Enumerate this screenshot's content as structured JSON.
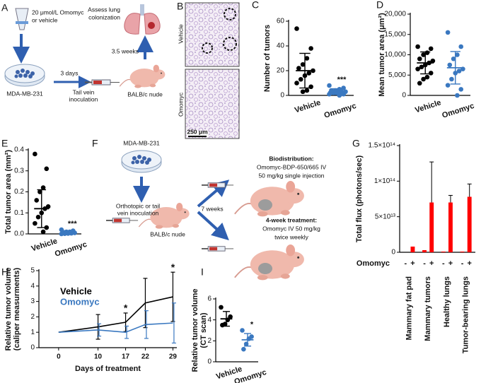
{
  "panel_labels": [
    "A",
    "B",
    "C",
    "D",
    "E",
    "F",
    "G",
    "H",
    "I"
  ],
  "diagram_a": {
    "treatment": [
      "20 μmol/L Omomyc",
      "or vehicle"
    ],
    "readout": [
      "Assess lung",
      "colonization"
    ],
    "wait": "3.5 weeks",
    "pre": "3 days",
    "cells": "MDA-MB-231",
    "injection": [
      "Tail vein",
      "inoculation"
    ],
    "mouse": "BALB/c nude"
  },
  "micrograph_b": {
    "rows": [
      "Vehicle",
      "Omomyc"
    ],
    "scale_bar": "250 μm"
  },
  "diagram_f": {
    "cells": "MDA-MB-231",
    "injection": [
      "Orthotopic or tail",
      "vein inoculation"
    ],
    "mouse": "BALB/c nude",
    "wait": "7 weeks",
    "biodistribution": {
      "title": "Biodistribution:",
      "lines": [
        "Omomyc-BDP-650/665 IV",
        "50 mg/kg single injection"
      ]
    },
    "treatment": {
      "title": "4-week treatment:",
      "lines": [
        "Omomyc IV 50 mg/kg",
        "twice weekly"
      ]
    }
  },
  "chart_data": [
    {
      "type": "dot",
      "y_label": "Number of tumors",
      "ylim": [
        0,
        60
      ],
      "yticks": [
        0,
        20,
        40,
        60
      ],
      "series": [
        {
          "name": "Vehicle",
          "color": "#000000",
          "values": [
            54,
            38,
            30,
            25,
            22,
            20,
            18,
            16,
            13,
            10,
            7,
            4,
            3
          ],
          "mean": 20,
          "sd": 14
        },
        {
          "name": "Omomyc",
          "color": "#3a78c0",
          "values": [
            8,
            6,
            5,
            4,
            4,
            3,
            3,
            2,
            2,
            1,
            1,
            0
          ],
          "mean": 3,
          "sd": 2.4
        }
      ],
      "annotations": [
        {
          "series": 1,
          "text": "***"
        }
      ]
    },
    {
      "type": "dot",
      "y_label": "Mean tumor area (μm²)",
      "ylim": [
        0,
        20000
      ],
      "yticks": [
        0,
        {
          "value": 5000,
          "label": "5,000"
        },
        {
          "value": 10000,
          "label": "10,000"
        },
        {
          "value": 15000,
          "label": "15,000"
        },
        {
          "value": 20000,
          "label": "20,000"
        }
      ],
      "series": [
        {
          "name": "Vehicle",
          "color": "#000000",
          "values": [
            12000,
            11500,
            10500,
            10000,
            9000,
            8500,
            8000,
            7500,
            7000,
            6500,
            5500,
            4500,
            4000,
            3000
          ],
          "mean": 8000,
          "sd": 2700
        },
        {
          "name": "Omomyc",
          "color": "#3a78c0",
          "values": [
            15500,
            12000,
            10000,
            9000,
            7500,
            6500,
            6000,
            5500,
            4000,
            2500,
            1500,
            0
          ],
          "mean": 6800,
          "sd": 4000
        }
      ],
      "annotations": []
    },
    {
      "type": "dot",
      "y_label": "Total tumor area (mm²)",
      "ylim": [
        0,
        0.4
      ],
      "yticks": [
        {
          "value": 0,
          "label": "0.0"
        },
        0.1,
        0.2,
        0.3,
        0.4
      ],
      "series": [
        {
          "name": "Vehicle",
          "color": "#000000",
          "values": [
            0.38,
            0.31,
            0.22,
            0.2,
            0.16,
            0.13,
            0.12,
            0.1,
            0.08,
            0.05,
            0.03,
            0.01
          ],
          "mean": 0.12,
          "sd": 0.09
        },
        {
          "name": "Omomyc",
          "color": "#3a78c0",
          "values": [
            0.02,
            0.015,
            0.01,
            0.01,
            0.008,
            0.005,
            0.003,
            0.002,
            0.001,
            0
          ],
          "mean": 0.01,
          "sd": 0.006
        }
      ],
      "annotations": [
        {
          "series": 1,
          "text": "***"
        }
      ]
    },
    {
      "type": "bar",
      "y_label": "Total flux (photons/sec)",
      "x_label": "Omomyc",
      "categories": [
        "Mammary fat pad",
        "Mammary tumors",
        "Healthy lungs",
        "Tumor-bearing lungs"
      ],
      "ylim": [
        0,
        150000000000000.0
      ],
      "yticks": [
        0,
        {
          "value": 50000000000000.0,
          "label": "5×10¹³"
        },
        {
          "value": 100000000000000.0,
          "label": "1×10¹⁴"
        },
        {
          "value": 150000000000000.0,
          "label": "1.5×10¹⁴"
        }
      ],
      "series": [
        {
          "name": "-",
          "color": "#ff0000",
          "values": [
            0,
            3000000000000.0,
            1000000000000.0,
            1000000000000.0
          ],
          "errors": [
            0,
            0,
            0,
            0
          ]
        },
        {
          "name": "+",
          "color": "#ff0000",
          "values": [
            8000000000000.0,
            70000000000000.0,
            70000000000000.0,
            78000000000000.0
          ],
          "errors": [
            0,
            57000000000000.0,
            10000000000000.0,
            18000000000000.0
          ]
        }
      ]
    },
    {
      "type": "line",
      "y_label": [
        "Relative tumor volume",
        "(caliper measurments)"
      ],
      "x_label": "Days of treatment",
      "x": [
        0,
        10,
        17,
        22,
        29
      ],
      "xlim": [
        -5,
        30
      ],
      "xticks": [
        0,
        10,
        17,
        22,
        29
      ],
      "ylim": [
        0,
        5
      ],
      "yticks": [
        0,
        1,
        2,
        3,
        4,
        5
      ],
      "series": [
        {
          "name": "Vehicle",
          "color": "#000000",
          "values": [
            1,
            1.35,
            1.65,
            2.9,
            3.3
          ],
          "errors": [
            0,
            0.8,
            0.6,
            1.6,
            1.6
          ]
        },
        {
          "name": "Omomyc",
          "color": "#3a78c0",
          "values": [
            1,
            1.15,
            1.0,
            1.5,
            1.6
          ],
          "errors": [
            0,
            0.4,
            0.4,
            0.9,
            1.3
          ]
        }
      ],
      "annotations": [
        {
          "x": 17,
          "text": "*"
        },
        {
          "x": 29,
          "text": "*"
        }
      ]
    },
    {
      "type": "dot",
      "y_label": [
        "Relative tumor volume",
        "(CT scan)"
      ],
      "ylim": [
        0,
        6
      ],
      "yticks": [
        0,
        2,
        4,
        6
      ],
      "series": [
        {
          "name": "Vehicle",
          "color": "#000000",
          "values": [
            5.2,
            4.3,
            4.0,
            3.6,
            3.5
          ],
          "mean": 4.1,
          "sd": 0.7
        },
        {
          "name": "Omomyc",
          "color": "#3a78c0",
          "values": [
            3.0,
            2.4,
            2.2,
            1.7,
            1.2
          ],
          "mean": 2.1,
          "sd": 0.6
        }
      ],
      "annotations": [
        {
          "series": 1,
          "text": "*"
        }
      ]
    }
  ]
}
